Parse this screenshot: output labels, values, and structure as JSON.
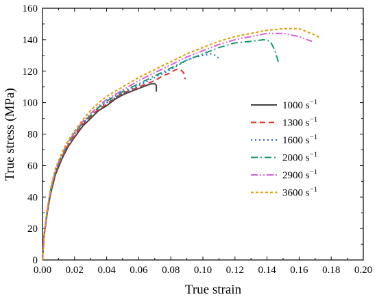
{
  "chart_data": {
    "type": "line",
    "title": "",
    "xlabel": "True strain",
    "ylabel": "True stress (MPa)",
    "xlim": [
      0.0,
      0.2
    ],
    "ylim": [
      0,
      160
    ],
    "x_ticks": [
      "0.00",
      "0.02",
      "0.04",
      "0.06",
      "0.08",
      "0.10",
      "0.12",
      "0.14",
      "0.16",
      "0.18",
      "0.20"
    ],
    "y_ticks": [
      "0",
      "20",
      "40",
      "60",
      "80",
      "100",
      "120",
      "140",
      "160"
    ],
    "grid": false,
    "legend_position": "center-right",
    "series": [
      {
        "name": "1000",
        "unit": "s",
        "unit_exp": "−1",
        "color": "#404040",
        "dash": "solid",
        "x": [
          0.0,
          0.001,
          0.003,
          0.005,
          0.008,
          0.012,
          0.016,
          0.02,
          0.025,
          0.03,
          0.035,
          0.04,
          0.045,
          0.05,
          0.055,
          0.06,
          0.065,
          0.068,
          0.07,
          0.071,
          0.071
        ],
        "y": [
          0,
          15,
          30,
          42,
          54,
          64,
          72,
          78,
          85,
          90,
          95,
          98,
          102,
          105,
          107,
          109,
          111,
          112,
          112,
          111,
          107
        ]
      },
      {
        "name": "1300",
        "unit": "s",
        "unit_exp": "−1",
        "color": "#e8322a",
        "dash": "dash",
        "x": [
          0.0,
          0.001,
          0.003,
          0.005,
          0.008,
          0.012,
          0.016,
          0.02,
          0.025,
          0.03,
          0.035,
          0.04,
          0.045,
          0.05,
          0.055,
          0.06,
          0.065,
          0.07,
          0.075,
          0.08,
          0.083,
          0.086,
          0.088,
          0.089
        ],
        "y": [
          0,
          16,
          31,
          43,
          55,
          65,
          73,
          79,
          86,
          91,
          96,
          99,
          103,
          106,
          108,
          110,
          112,
          114,
          117,
          119,
          121,
          121,
          119,
          115
        ]
      },
      {
        "name": "1600",
        "unit": "s",
        "unit_exp": "−1",
        "color": "#1f5fd1",
        "dash": "dot",
        "x": [
          0.0,
          0.001,
          0.003,
          0.005,
          0.008,
          0.012,
          0.016,
          0.02,
          0.025,
          0.03,
          0.035,
          0.04,
          0.05,
          0.06,
          0.07,
          0.08,
          0.09,
          0.095,
          0.1,
          0.105,
          0.108,
          0.11
        ],
        "y": [
          0,
          16,
          32,
          44,
          56,
          66,
          74,
          80,
          87,
          92,
          97,
          100,
          106,
          111,
          116,
          121,
          127,
          129,
          130,
          131,
          130,
          128
        ]
      },
      {
        "name": "2000",
        "unit": "s",
        "unit_exp": "−1",
        "color": "#0f9a6a",
        "dash": "dashdot",
        "x": [
          0.0,
          0.001,
          0.003,
          0.005,
          0.008,
          0.012,
          0.016,
          0.02,
          0.025,
          0.03,
          0.035,
          0.04,
          0.05,
          0.06,
          0.07,
          0.08,
          0.09,
          0.1,
          0.11,
          0.12,
          0.13,
          0.138,
          0.142,
          0.145,
          0.147
        ],
        "y": [
          0,
          16,
          32,
          44,
          56,
          66,
          74,
          81,
          87,
          92,
          97,
          101,
          107,
          112,
          117,
          122,
          127,
          131,
          135,
          138,
          139,
          140,
          139,
          133,
          126
        ]
      },
      {
        "name": "2900",
        "unit": "s",
        "unit_exp": "−1",
        "color": "#d35cd6",
        "dash": "dashdotdot",
        "x": [
          0.0,
          0.001,
          0.003,
          0.005,
          0.008,
          0.012,
          0.016,
          0.02,
          0.025,
          0.03,
          0.035,
          0.04,
          0.05,
          0.06,
          0.07,
          0.08,
          0.09,
          0.1,
          0.11,
          0.12,
          0.13,
          0.14,
          0.15,
          0.16,
          0.165,
          0.168
        ],
        "y": [
          0,
          16,
          32,
          44,
          57,
          67,
          75,
          81,
          88,
          93,
          98,
          102,
          108,
          114,
          119,
          124,
          129,
          133,
          137,
          140,
          142,
          144,
          144,
          142,
          140,
          139
        ]
      },
      {
        "name": "3600",
        "unit": "s",
        "unit_exp": "−1",
        "color": "#e39a00",
        "dash": "shortdash",
        "x": [
          0.0,
          0.001,
          0.003,
          0.005,
          0.008,
          0.012,
          0.016,
          0.02,
          0.025,
          0.03,
          0.035,
          0.04,
          0.05,
          0.06,
          0.07,
          0.08,
          0.09,
          0.1,
          0.11,
          0.12,
          0.13,
          0.14,
          0.15,
          0.16,
          0.165,
          0.17,
          0.173
        ],
        "y": [
          0,
          16,
          32,
          45,
          58,
          68,
          76,
          82,
          89,
          95,
          100,
          104,
          110,
          116,
          121,
          126,
          131,
          135,
          139,
          142,
          144,
          146,
          147,
          147,
          145,
          143,
          141
        ]
      }
    ]
  }
}
